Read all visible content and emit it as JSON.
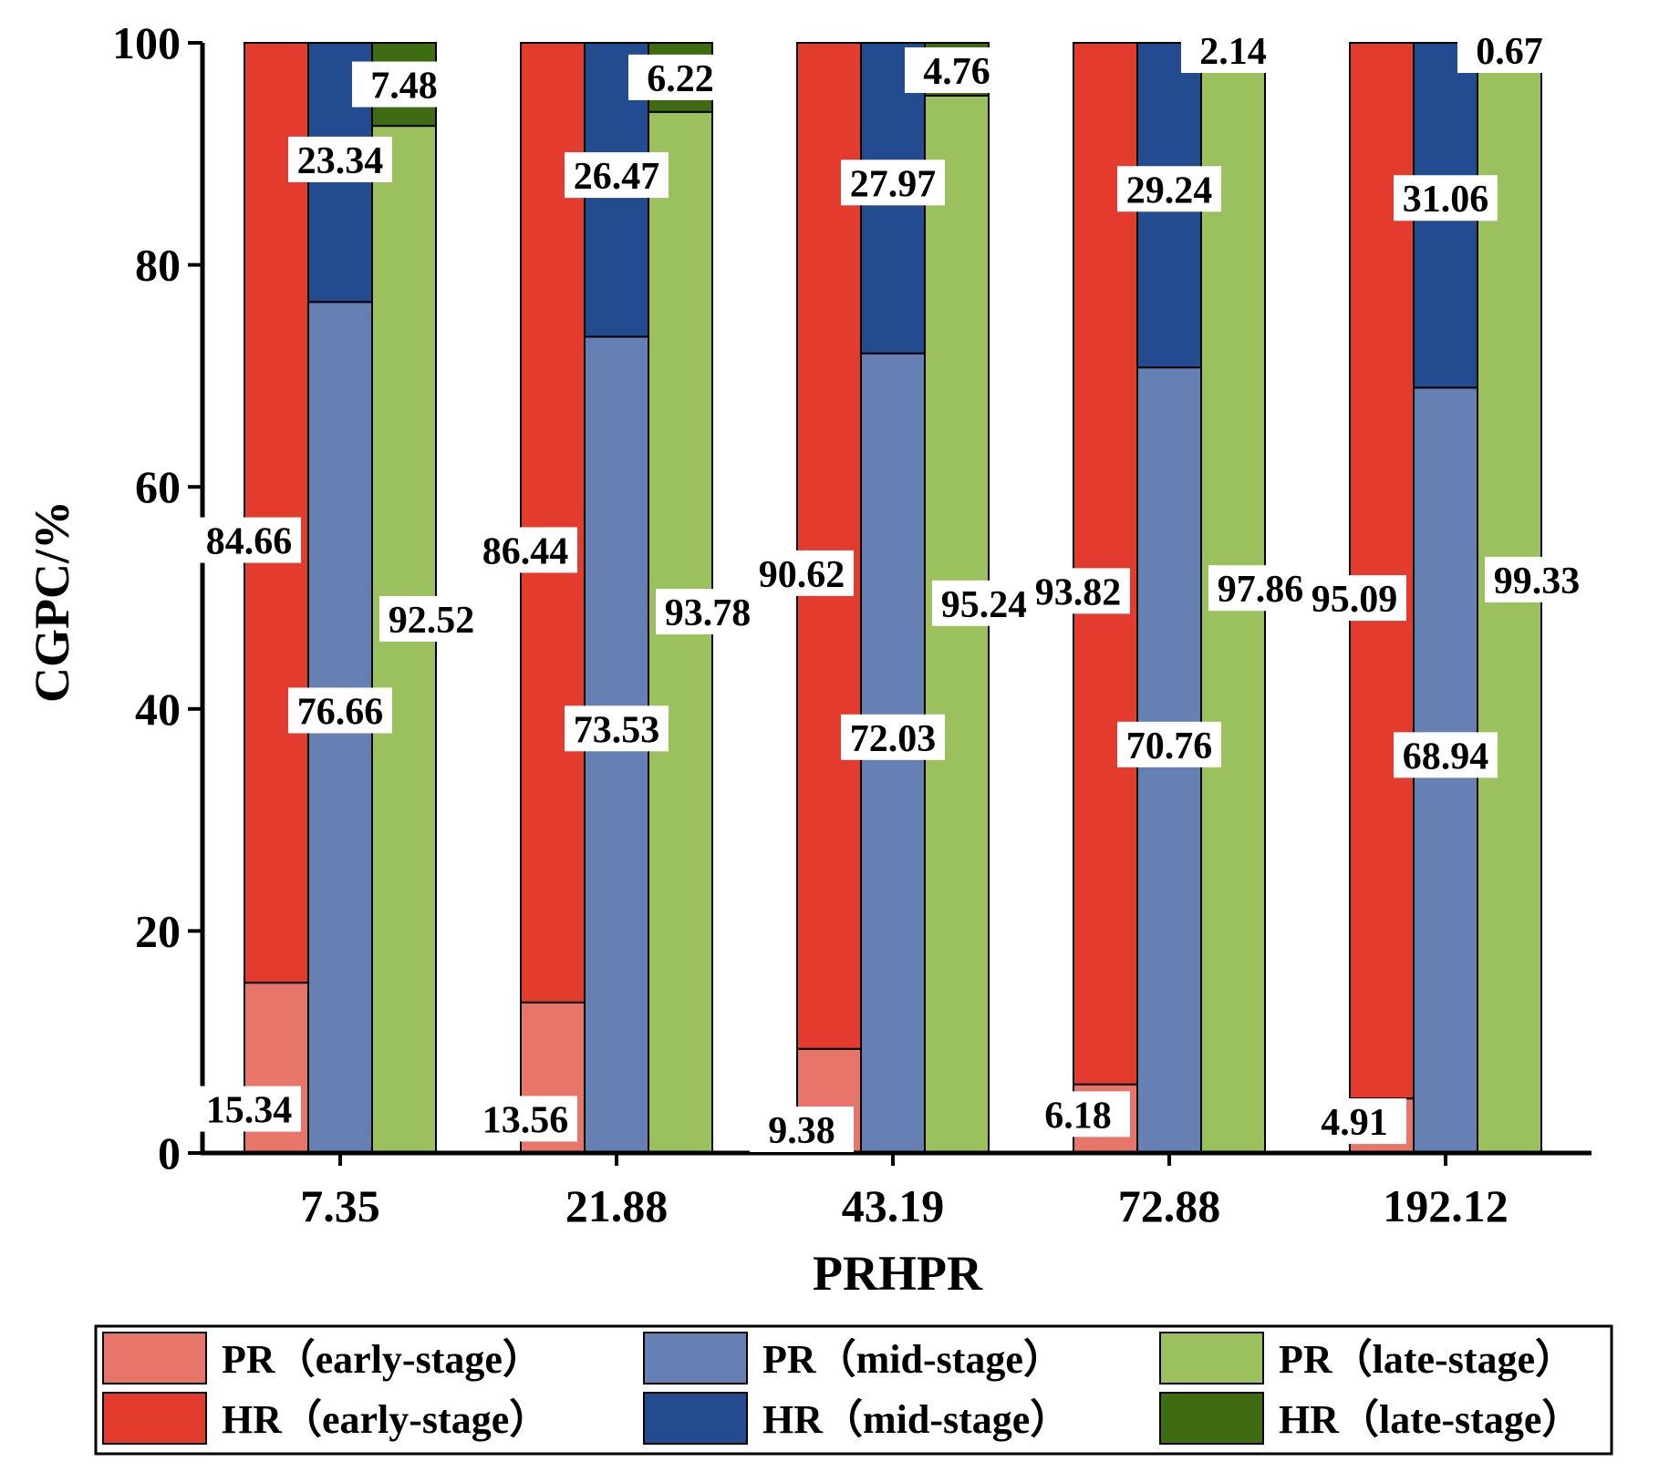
{
  "chart_data": {
    "type": "bar",
    "stacked": true,
    "title": "",
    "xlabel": "PRHPR",
    "ylabel": "CGPC/%",
    "ylim": [
      0,
      100
    ],
    "yticks": [
      0,
      20,
      40,
      60,
      80,
      100
    ],
    "categories": [
      "7.35",
      "21.88",
      "43.19",
      "72.88",
      "192.12"
    ],
    "groups": [
      {
        "name": "early-stage",
        "segments": [
          {
            "name": "PR（early-stage）",
            "color": "#e8756a",
            "values": [
              15.34,
              13.56,
              9.38,
              6.18,
              4.91
            ]
          },
          {
            "name": "HR（early-stage）",
            "color": "#e33b2e",
            "values": [
              84.66,
              86.44,
              90.62,
              93.82,
              95.09
            ]
          }
        ]
      },
      {
        "name": "mid-stage",
        "segments": [
          {
            "name": "PR（mid-stage）",
            "color": "#6680b3",
            "values": [
              76.66,
              73.53,
              72.03,
              70.76,
              68.94
            ]
          },
          {
            "name": "HR（mid-stage）",
            "color": "#234b8f",
            "values": [
              23.34,
              26.47,
              27.97,
              29.24,
              31.06
            ]
          }
        ]
      },
      {
        "name": "late-stage",
        "segments": [
          {
            "name": "PR（late-stage）",
            "color": "#9bc15e",
            "values": [
              92.52,
              93.78,
              95.24,
              97.86,
              99.33
            ]
          },
          {
            "name": "HR（late-stage）",
            "color": "#3f6b12",
            "values": [
              7.48,
              6.22,
              4.76,
              2.14,
              0.67
            ]
          }
        ]
      }
    ],
    "legend": {
      "placement": "bottom",
      "entries": [
        {
          "label": "PR（early-stage）",
          "color": "#e8756a"
        },
        {
          "label": "PR（mid-stage）",
          "color": "#6680b3"
        },
        {
          "label": "PR（late-stage）",
          "color": "#9bc15e"
        },
        {
          "label": "HR（early-stage）",
          "color": "#e33b2e"
        },
        {
          "label": "HR（mid-stage）",
          "color": "#234b8f"
        },
        {
          "label": "HR（late-stage）",
          "color": "#3f6b12"
        }
      ]
    }
  }
}
